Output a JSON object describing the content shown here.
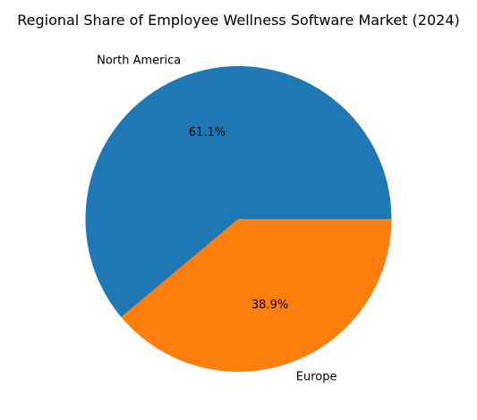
{
  "chart_data": {
    "type": "pie",
    "title": "Regional Share of Employee Wellness Software Market (2024)",
    "labels": [
      "North America",
      "Europe"
    ],
    "values": [
      61.1,
      38.9
    ],
    "value_labels": [
      "61.1%",
      "38.9%"
    ],
    "colors": [
      "#1f77b4",
      "#ff7f0e"
    ],
    "start_angle_deg": 0,
    "direction": "counterclockwise",
    "legend": "none"
  }
}
